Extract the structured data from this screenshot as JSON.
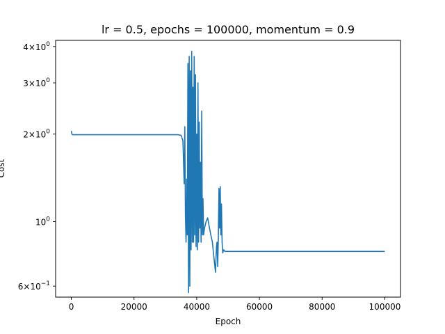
{
  "chart_data": {
    "type": "line",
    "title": "lr = 0.5, epochs = 100000, momentum = 0.9",
    "xlabel": "Epoch",
    "ylabel": "Cost",
    "y_scale": "log",
    "xlim": [
      -5000,
      105000
    ],
    "ylim": [
      0.55,
      4.2
    ],
    "grid": false,
    "x_ticks": [
      {
        "value": 0,
        "label": "0"
      },
      {
        "value": 20000,
        "label": "20000"
      },
      {
        "value": 40000,
        "label": "40000"
      },
      {
        "value": 60000,
        "label": "60000"
      },
      {
        "value": 80000,
        "label": "80000"
      },
      {
        "value": 100000,
        "label": "100000"
      }
    ],
    "y_ticks": [
      {
        "value": 0.6,
        "base": "6",
        "exp": "−1"
      },
      {
        "value": 1.0,
        "base": "",
        "exp": "0"
      },
      {
        "value": 2.0,
        "base": "2",
        "exp": "0"
      },
      {
        "value": 3.0,
        "base": "3",
        "exp": "0"
      },
      {
        "value": 4.0,
        "base": "4",
        "exp": "0"
      }
    ],
    "series": [
      {
        "color": "#1f77b4",
        "x": [
          0,
          200,
          400,
          2000,
          10000,
          20000,
          30000,
          34000,
          35000,
          35600,
          36000,
          36200,
          36400,
          36600,
          36800,
          37000,
          37200,
          37400,
          37600,
          37800,
          38000,
          38200,
          38400,
          38600,
          38800,
          39000,
          39200,
          39400,
          39600,
          39800,
          40000,
          40200,
          40400,
          40600,
          40800,
          41000,
          41200,
          41400,
          41600,
          41800,
          42000,
          42200,
          42500,
          43000,
          43500,
          44000,
          44500,
          45000,
          45500,
          46000,
          46300,
          46500,
          46700,
          46900,
          47100,
          47300,
          47500,
          47700,
          47900,
          48100,
          48300,
          48600,
          49000,
          49500,
          50000,
          55000,
          60000,
          70000,
          80000,
          90000,
          100000
        ],
        "y": [
          2.05,
          2.0,
          1.99,
          1.99,
          1.99,
          1.99,
          1.99,
          1.99,
          1.98,
          1.9,
          1.35,
          2.12,
          1.05,
          0.85,
          1.4,
          0.9,
          3.5,
          0.57,
          3.7,
          0.6,
          3.3,
          0.8,
          3.85,
          0.85,
          2.9,
          0.85,
          3.7,
          0.9,
          3.2,
          0.82,
          2.0,
          0.8,
          3.0,
          0.85,
          2.2,
          0.95,
          1.6,
          0.85,
          2.4,
          0.9,
          1.2,
          0.9,
          0.95,
          1.0,
          1.03,
          0.96,
          0.9,
          0.85,
          0.75,
          0.67,
          0.82,
          0.85,
          0.7,
          0.88,
          1.3,
          0.95,
          1.32,
          0.9,
          1.15,
          0.85,
          0.78,
          0.8,
          0.79,
          0.79,
          0.79,
          0.79,
          0.79,
          0.79,
          0.79,
          0.79,
          0.79
        ]
      }
    ]
  }
}
